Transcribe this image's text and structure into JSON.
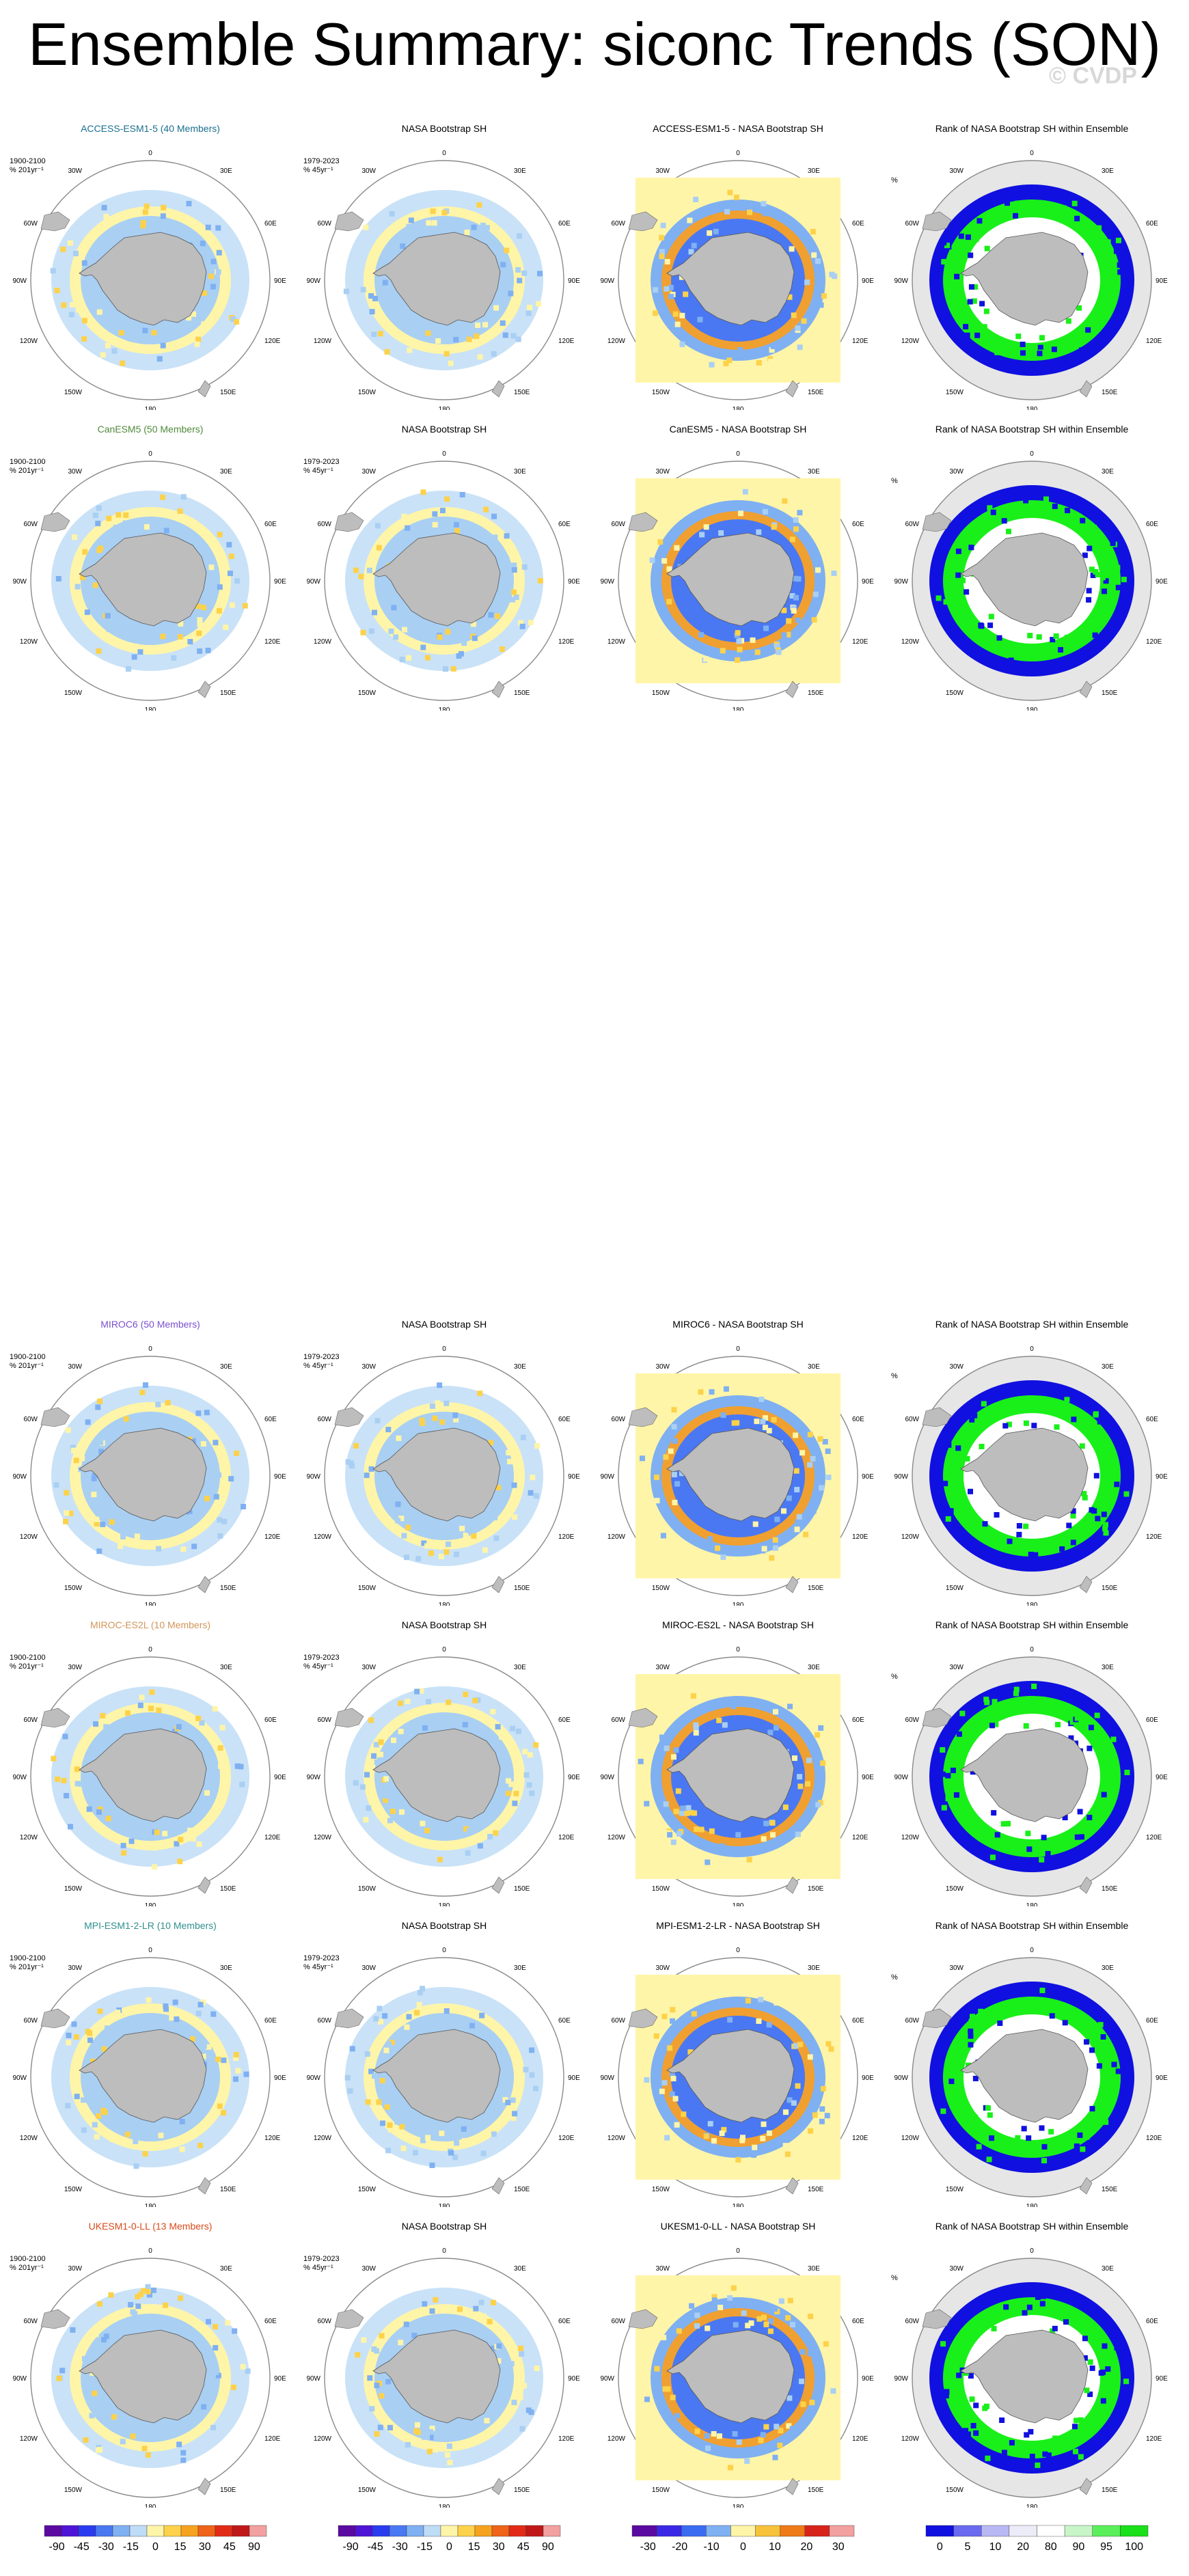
{
  "title": "Ensemble Summary: siconc Trends (SON)",
  "watermark": "© CVDP",
  "colors": {
    "ocean_light": "#dde8f7",
    "land": "#bdbdbd",
    "rank_background": "#e6e6e6",
    "rank_low": "#1010e0",
    "rank_high": "#19f019"
  },
  "column_titles": {
    "observation": "NASA Bootstrap SH",
    "rank": "Rank of NASA Bootstrap SH within Ensemble"
  },
  "subtitles": {
    "model_period": "1900-2100",
    "model_unit": "% 201yr⁻¹",
    "obs_period": "1979-2023",
    "obs_unit": "% 45yr⁻¹",
    "rank_unit": "%"
  },
  "map_labels": {
    "top": "0",
    "bottom": "180",
    "left": "90W",
    "right": "90E",
    "upper_left_1": "30W",
    "upper_left_2": "60W",
    "upper_right_1": "30E",
    "upper_right_2": "60E",
    "lower_left_1": "120W",
    "lower_left_2": "150W",
    "lower_right_1": "120E",
    "lower_right_2": "150E"
  },
  "rows": [
    {
      "model_title": "ACCESS-ESM1-5 (40 Members)",
      "model_color": "#1a6f8f",
      "diff_title": "ACCESS-ESM1-5 - NASA Bootstrap SH"
    },
    {
      "model_title": "CanESM5 (50 Members)",
      "model_color": "#4f8a3a",
      "diff_title": "CanESM5 - NASA Bootstrap SH"
    },
    {
      "model_title": "MIROC6 (50 Members)",
      "model_color": "#7b4fd0",
      "diff_title": "MIROC6 - NASA Bootstrap SH"
    },
    {
      "model_title": "MIROC-ES2L (10 Members)",
      "model_color": "#d2955a",
      "diff_title": "MIROC-ES2L - NASA Bootstrap SH"
    },
    {
      "model_title": "MPI-ESM1-2-LR (10 Members)",
      "model_color": "#2f8f8f",
      "diff_title": "MPI-ESM1-2-LR - NASA Bootstrap SH"
    },
    {
      "model_title": "UKESM1-0-LL (13 Members)",
      "model_color": "#d84a1a",
      "diff_title": "UKESM1-0-LL - NASA Bootstrap SH"
    }
  ],
  "chart_data": [
    {
      "type": "heatmap",
      "name": "trend colorbar (model & observation panels)",
      "levels": [
        -90,
        -75,
        -60,
        -45,
        -30,
        -15,
        0,
        15,
        30,
        45,
        60,
        75,
        90
      ],
      "tick_labels": [
        "-90",
        "-45",
        "-30",
        "-15",
        "0",
        "15",
        "30",
        "45",
        "90"
      ],
      "colors": [
        "#5a0aa0",
        "#4e15d6",
        "#2a3cf0",
        "#4a78f2",
        "#7fb0f2",
        "#bfdcf7",
        "#fff5a8",
        "#fdd24a",
        "#f7a21e",
        "#ef6418",
        "#e22b16",
        "#c01818",
        "#f2a0a0"
      ]
    },
    {
      "type": "heatmap",
      "name": "difference colorbar (model minus observation)",
      "levels": [
        -40,
        -30,
        -20,
        -10,
        0,
        10,
        20,
        30,
        40
      ],
      "tick_labels": [
        "-30",
        "-20",
        "-10",
        "0",
        "10",
        "20",
        "30"
      ],
      "colors": [
        "#5a0aa0",
        "#3a28e6",
        "#3a6cf2",
        "#7fb0f2",
        "#fff5a8",
        "#f7c23a",
        "#ef7a18",
        "#d8231a",
        "#f2a0a0"
      ]
    },
    {
      "type": "heatmap",
      "name": "rank colorbar (percentile)",
      "levels": [
        0,
        5,
        10,
        20,
        80,
        90,
        95,
        100
      ],
      "tick_labels": [
        "0",
        "5",
        "10",
        "20",
        "80",
        "90",
        "95",
        "100"
      ],
      "colors": [
        "#1010e0",
        "#6a6af0",
        "#b8b8f5",
        "#ececf8",
        "#ffffff",
        "#c8f5c8",
        "#5aef5a",
        "#19e019"
      ]
    }
  ]
}
